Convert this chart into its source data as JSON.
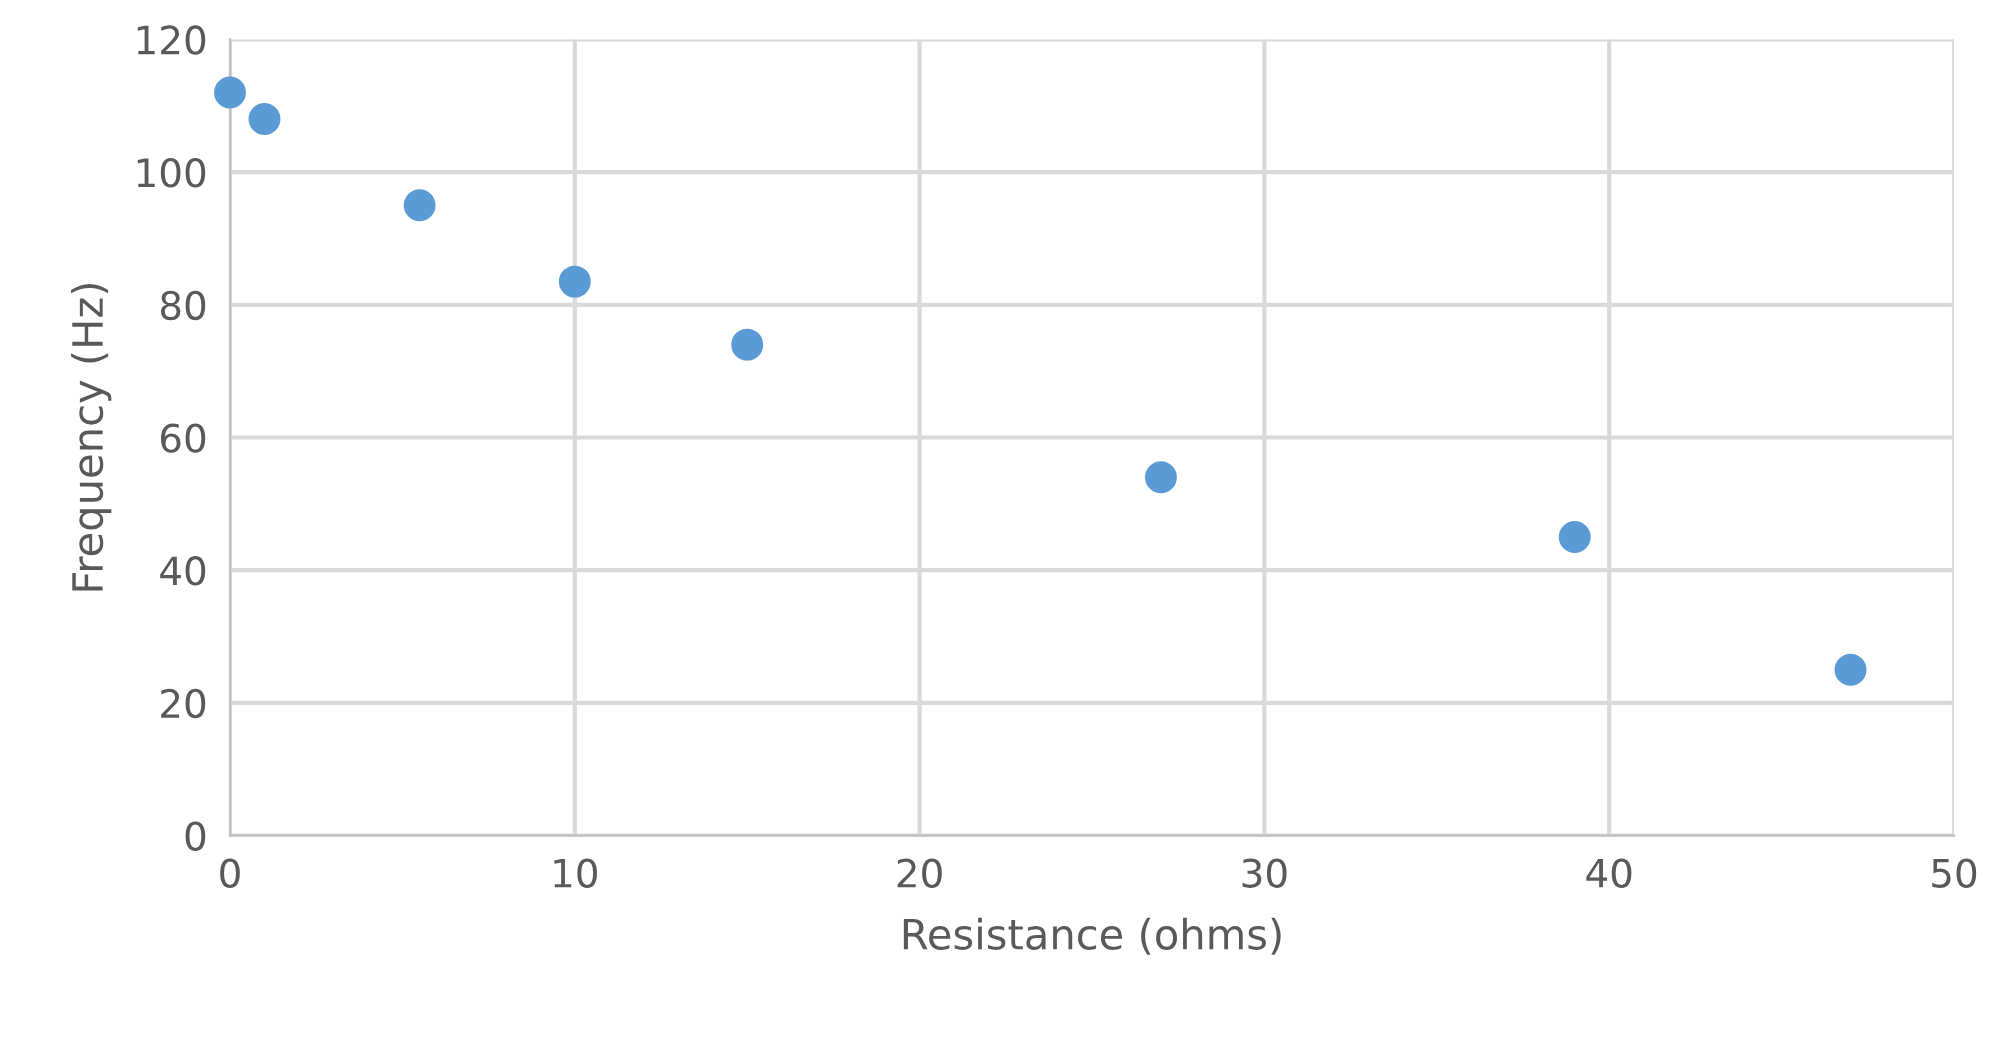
{
  "chart_data": {
    "type": "scatter",
    "xlabel": "Resistance (ohms)",
    "ylabel": "Frequency (Hz)",
    "x": [
      0,
      1,
      5.5,
      10,
      15,
      27,
      39,
      47
    ],
    "series": [
      {
        "color": "#5b9bd5",
        "values": [
          112,
          108,
          95,
          83.5,
          74,
          54,
          45,
          25
        ]
      }
    ],
    "xlim": [
      0,
      50
    ],
    "xticks": [
      0,
      10,
      20,
      30,
      40,
      50
    ],
    "ylim": [
      0,
      120
    ],
    "yticks": [
      0,
      20,
      40,
      60,
      80,
      100,
      120
    ],
    "grid": true,
    "marker": "circle"
  }
}
